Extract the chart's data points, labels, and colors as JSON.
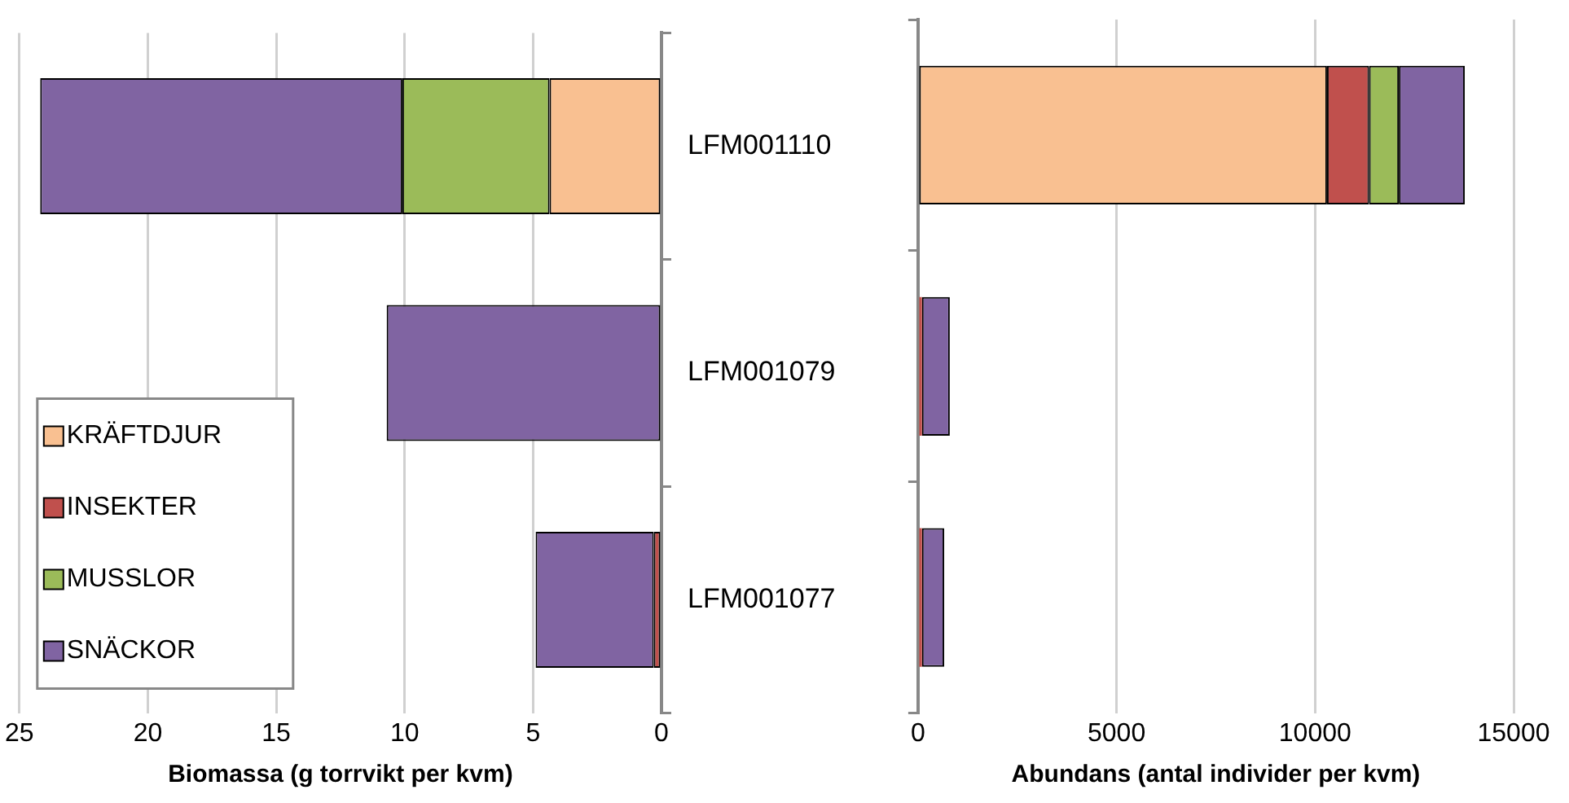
{
  "chart_data": [
    {
      "type": "bar",
      "orientation": "horizontal",
      "stacked": true,
      "xlabel": "Biomassa (g torrvikt per kvm)",
      "categories": [
        "LFM001110",
        "LFM001079",
        "LFM001077"
      ],
      "series": [
        {
          "name": "KRÄFTDJUR",
          "color": "#f9c091",
          "values": [
            4.36,
            null,
            null
          ]
        },
        {
          "name": "INSEKTER",
          "color": "#c0504d",
          "values": [
            null,
            null,
            0.3
          ]
        },
        {
          "name": "MUSSLOR",
          "color": "#9bbb59",
          "values": [
            5.73,
            null,
            null
          ]
        },
        {
          "name": "SNÄCKOR",
          "color": "#8064a2",
          "values": [
            14.1,
            10.7,
            4.6
          ]
        }
      ],
      "xlim": [
        25,
        0
      ],
      "xticks": [
        25,
        20,
        15,
        10,
        5,
        0
      ],
      "grid": "x",
      "legend": "bottom left"
    },
    {
      "type": "bar",
      "orientation": "horizontal",
      "stacked": true,
      "xlabel": "Abundans (antal individer per kvm)",
      "categories": [
        null,
        null,
        null
      ],
      "series": [
        {
          "color": "#f9c091",
          "values": [
            10300,
            null,
            null
          ]
        },
        {
          "color": "#c0504d",
          "values": [
            1060,
            100,
            100
          ]
        },
        {
          "color": "#9bbb59",
          "values": [
            750,
            null,
            null
          ]
        },
        {
          "color": "#8064a2",
          "values": [
            1660,
            700,
            560
          ]
        }
      ],
      "xlim": [
        0,
        15000
      ],
      "xticks": [
        0,
        5000,
        10000,
        15000
      ],
      "grid": "x",
      "tick_labels": "x"
    }
  ]
}
